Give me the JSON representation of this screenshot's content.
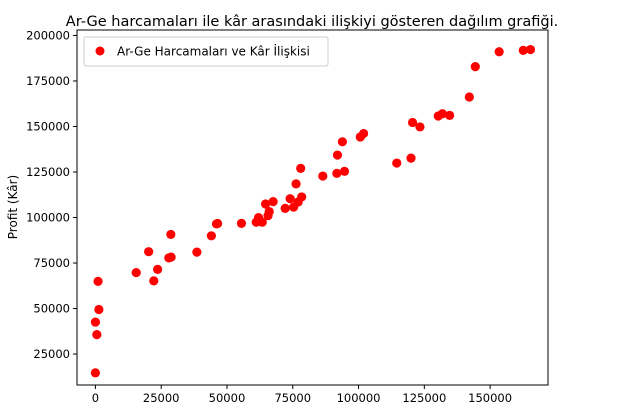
{
  "chart_data": {
    "type": "scatter",
    "title": "Ar-Ge harcamaları ile kâr arasındaki ilişkiyi gösteren dağılım grafiği.",
    "xlabel": "",
    "ylabel": "Profit (Kâr)",
    "xlim": [
      -7000,
      172000
    ],
    "ylim": [
      8000,
      203000
    ],
    "xticks": [
      0,
      25000,
      50000,
      75000,
      100000,
      125000,
      150000
    ],
    "yticks": [
      25000,
      50000,
      75000,
      100000,
      125000,
      150000,
      175000,
      200000
    ],
    "grid": false,
    "legend_position": "top-left",
    "series": [
      {
        "name": "Ar-Ge Harcamaları ve Kâr İlişkisi",
        "color": "#ff0000",
        "points": [
          {
            "x": 165349,
            "y": 192262
          },
          {
            "x": 162598,
            "y": 191792
          },
          {
            "x": 153442,
            "y": 191050
          },
          {
            "x": 144372,
            "y": 182902
          },
          {
            "x": 142107,
            "y": 166188
          },
          {
            "x": 131877,
            "y": 156991
          },
          {
            "x": 134615,
            "y": 156123
          },
          {
            "x": 130298,
            "y": 155753
          },
          {
            "x": 120543,
            "y": 152212
          },
          {
            "x": 123335,
            "y": 149760
          },
          {
            "x": 101913,
            "y": 146122
          },
          {
            "x": 100672,
            "y": 144259
          },
          {
            "x": 93864,
            "y": 141586
          },
          {
            "x": 91992,
            "y": 134307
          },
          {
            "x": 119943,
            "y": 132603
          },
          {
            "x": 114524,
            "y": 129917
          },
          {
            "x": 78013,
            "y": 126993
          },
          {
            "x": 94657,
            "y": 125371
          },
          {
            "x": 91749,
            "y": 124267
          },
          {
            "x": 86420,
            "y": 122777
          },
          {
            "x": 76254,
            "y": 118474
          },
          {
            "x": 78389,
            "y": 111314
          },
          {
            "x": 73995,
            "y": 110352
          },
          {
            "x": 67533,
            "y": 108734
          },
          {
            "x": 77045,
            "y": 108552
          },
          {
            "x": 64665,
            "y": 107404
          },
          {
            "x": 75329,
            "y": 105734
          },
          {
            "x": 72108,
            "y": 105008
          },
          {
            "x": 66052,
            "y": 103282
          },
          {
            "x": 65606,
            "y": 101005
          },
          {
            "x": 61994,
            "y": 99938
          },
          {
            "x": 61137,
            "y": 97484
          },
          {
            "x": 63408,
            "y": 97428
          },
          {
            "x": 55494,
            "y": 96779
          },
          {
            "x": 46427,
            "y": 96713
          },
          {
            "x": 46014,
            "y": 96479
          },
          {
            "x": 28664,
            "y": 90709
          },
          {
            "x": 44070,
            "y": 89950
          },
          {
            "x": 20230,
            "y": 81230
          },
          {
            "x": 38558,
            "y": 81006
          },
          {
            "x": 28754,
            "y": 78240
          },
          {
            "x": 27893,
            "y": 77799
          },
          {
            "x": 23641,
            "y": 71499
          },
          {
            "x": 15506,
            "y": 69759
          },
          {
            "x": 22178,
            "y": 65201
          },
          {
            "x": 1001,
            "y": 64927
          },
          {
            "x": 1315,
            "y": 49491
          },
          {
            "x": 0,
            "y": 42560
          },
          {
            "x": 542,
            "y": 35673
          },
          {
            "x": 0,
            "y": 14681
          }
        ]
      }
    ]
  }
}
